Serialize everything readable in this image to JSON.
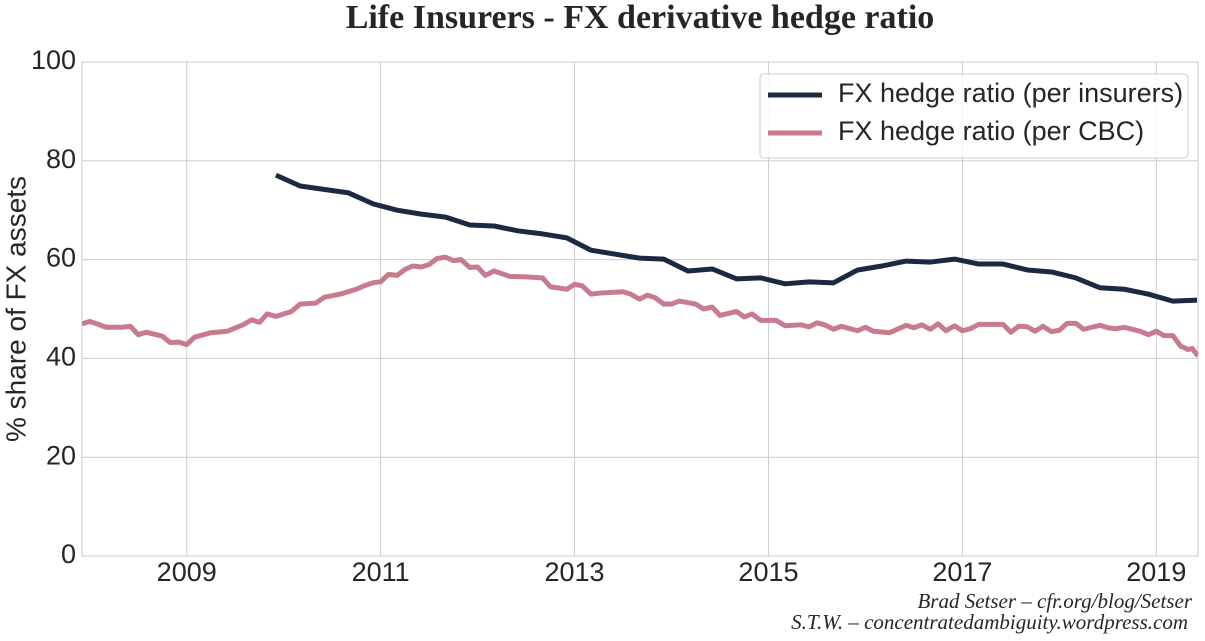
{
  "chart_data": {
    "type": "line",
    "title": "Life Insurers - FX derivative hedge ratio",
    "y_label": "% share of FX assets",
    "annotations": [
      "Brad Setser – cfr.org/blog/Setser",
      "S.T.W. – concentratedambiguity.wordpress.com"
    ],
    "xlim": [
      2007.92,
      2019.43
    ],
    "xticks": [
      2009,
      2011,
      2013,
      2015,
      2017,
      2019
    ],
    "ylim": [
      0,
      100
    ],
    "yticks": [
      0,
      20,
      40,
      60,
      80,
      100
    ],
    "grid": true,
    "legend": "upper right",
    "series": [
      {
        "name": "FX hedge ratio (per insurers)",
        "color": "#1b2a41",
        "x": [
          2009.92,
          2010.17,
          2010.67,
          2010.92,
          2011.17,
          2011.42,
          2011.67,
          2011.92,
          2012.17,
          2012.42,
          2012.67,
          2012.92,
          2013.17,
          2013.42,
          2013.67,
          2013.92,
          2014.17,
          2014.42,
          2014.67,
          2014.92,
          2015.17,
          2015.42,
          2015.67,
          2015.92,
          2016.17,
          2016.42,
          2016.67,
          2016.92,
          2017.17,
          2017.42,
          2017.67,
          2017.92,
          2018.17,
          2018.42,
          2018.67,
          2018.92,
          2019.17,
          2019.42
        ],
        "values": [
          77.1,
          74.9,
          73.5,
          71.3,
          70.0,
          69.2,
          68.6,
          67.0,
          66.8,
          65.8,
          65.2,
          64.4,
          61.9,
          61.1,
          60.3,
          60.1,
          57.7,
          58.1,
          56.1,
          56.3,
          55.1,
          55.5,
          55.3,
          57.9,
          58.7,
          59.7,
          59.5,
          60.1,
          59.1,
          59.1,
          57.9,
          57.5,
          56.3,
          54.3,
          54.0,
          53.0,
          51.6,
          51.8
        ]
      },
      {
        "name": "FX hedge ratio (per CBC)",
        "color": "#c97b8e",
        "x": [
          2007.92,
          2008.0,
          2008.17,
          2008.33,
          2008.42,
          2008.5,
          2008.58,
          2008.75,
          2008.83,
          2008.92,
          2009.0,
          2009.08,
          2009.25,
          2009.42,
          2009.58,
          2009.67,
          2009.75,
          2009.83,
          2009.92,
          2010.08,
          2010.17,
          2010.33,
          2010.42,
          2010.58,
          2010.75,
          2010.83,
          2010.92,
          2011.0,
          2011.08,
          2011.17,
          2011.25,
          2011.33,
          2011.42,
          2011.5,
          2011.58,
          2011.67,
          2011.75,
          2011.83,
          2011.92,
          2012.0,
          2012.08,
          2012.17,
          2012.33,
          2012.5,
          2012.67,
          2012.75,
          2012.92,
          2013.0,
          2013.08,
          2013.17,
          2013.25,
          2013.5,
          2013.58,
          2013.67,
          2013.75,
          2013.83,
          2013.92,
          2014.0,
          2014.08,
          2014.25,
          2014.33,
          2014.42,
          2014.5,
          2014.67,
          2014.75,
          2014.83,
          2014.92,
          2015.08,
          2015.17,
          2015.33,
          2015.42,
          2015.5,
          2015.58,
          2015.67,
          2015.75,
          2015.92,
          2016.0,
          2016.08,
          2016.25,
          2016.42,
          2016.5,
          2016.58,
          2016.67,
          2016.75,
          2016.83,
          2016.92,
          2017.0,
          2017.08,
          2017.17,
          2017.42,
          2017.5,
          2017.58,
          2017.67,
          2017.75,
          2017.83,
          2017.92,
          2018.0,
          2018.08,
          2018.17,
          2018.25,
          2018.42,
          2018.5,
          2018.58,
          2018.67,
          2018.83,
          2018.92,
          2019.0,
          2019.08,
          2019.17,
          2019.25,
          2019.33,
          2019.37,
          2019.43
        ],
        "values": [
          47.0,
          47.5,
          46.3,
          46.3,
          46.5,
          44.8,
          45.3,
          44.5,
          43.2,
          43.3,
          42.8,
          44.3,
          45.2,
          45.5,
          46.8,
          47.8,
          47.3,
          49.0,
          48.5,
          49.5,
          51.0,
          51.2,
          52.4,
          53.0,
          54.0,
          54.7,
          55.3,
          55.5,
          57.0,
          56.8,
          58.0,
          58.7,
          58.5,
          59.0,
          60.2,
          60.5,
          59.8,
          60.0,
          58.4,
          58.5,
          56.8,
          57.7,
          56.6,
          56.5,
          56.3,
          54.5,
          54.0,
          55.0,
          54.7,
          53.0,
          53.2,
          53.5,
          53.0,
          52.0,
          52.8,
          52.3,
          51.0,
          51.0,
          51.6,
          51.0,
          50.0,
          50.4,
          48.7,
          49.5,
          48.4,
          49.0,
          47.7,
          47.7,
          46.6,
          46.8,
          46.4,
          47.2,
          46.8,
          45.9,
          46.5,
          45.6,
          46.3,
          45.5,
          45.2,
          46.7,
          46.2,
          46.8,
          45.9,
          47.0,
          45.6,
          46.6,
          45.6,
          46.0,
          46.9,
          46.9,
          45.3,
          46.5,
          46.4,
          45.5,
          46.5,
          45.4,
          45.7,
          47.1,
          47.1,
          45.9,
          46.7,
          46.2,
          46.0,
          46.3,
          45.5,
          44.8,
          45.5,
          44.6,
          44.6,
          42.5,
          41.8,
          42.0,
          40.5
        ]
      }
    ]
  }
}
